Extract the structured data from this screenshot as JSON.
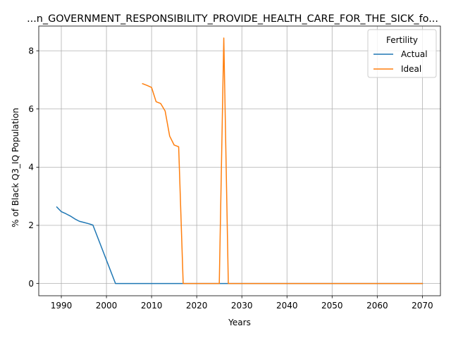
{
  "chart_data": {
    "type": "line",
    "title": "...n_GOVERNMENT_RESPONSIBILITY_PROVIDE_HEALTH_CARE_FOR_THE_SICK_fo...",
    "xlabel": "Years",
    "ylabel": "% of Black Q3_IQ Population",
    "xlim": [
      1985,
      2074
    ],
    "ylim": [
      -0.42,
      8.85
    ],
    "xticks": [
      1990,
      2000,
      2010,
      2020,
      2030,
      2040,
      2050,
      2060,
      2070
    ],
    "yticks": [
      0,
      2,
      4,
      6,
      8
    ],
    "grid": true,
    "legend": {
      "title": "Fertility",
      "placement": "top-right"
    },
    "series": [
      {
        "name": "Actual",
        "color": "#1f77b4",
        "points": [
          [
            1989,
            2.63
          ],
          [
            1990,
            2.47
          ],
          [
            1991,
            2.4
          ],
          [
            1992,
            2.32
          ],
          [
            1993,
            2.22
          ],
          [
            1994,
            2.14
          ],
          [
            1995,
            2.1
          ],
          [
            1996,
            2.06
          ],
          [
            1997,
            2.01
          ],
          [
            2002,
            0.0
          ],
          [
            2010,
            0.0
          ],
          [
            2020,
            0.0
          ],
          [
            2030,
            0.0
          ],
          [
            2040,
            0.0
          ],
          [
            2050,
            0.0
          ],
          [
            2060,
            0.0
          ],
          [
            2070,
            0.0
          ]
        ]
      },
      {
        "name": "Ideal",
        "color": "#ff7f0e",
        "points": [
          [
            2008,
            6.87
          ],
          [
            2009,
            6.81
          ],
          [
            2010,
            6.74
          ],
          [
            2011,
            6.25
          ],
          [
            2012,
            6.19
          ],
          [
            2013,
            5.93
          ],
          [
            2014,
            5.07
          ],
          [
            2015,
            4.76
          ],
          [
            2016,
            4.7
          ],
          [
            2017,
            0.0
          ],
          [
            2020,
            0.0
          ],
          [
            2025,
            0.0
          ],
          [
            2026,
            8.44
          ],
          [
            2027,
            0.0
          ],
          [
            2030,
            0.0
          ],
          [
            2040,
            0.0
          ],
          [
            2050,
            0.0
          ],
          [
            2060,
            0.0
          ],
          [
            2070,
            0.0
          ]
        ]
      }
    ]
  }
}
